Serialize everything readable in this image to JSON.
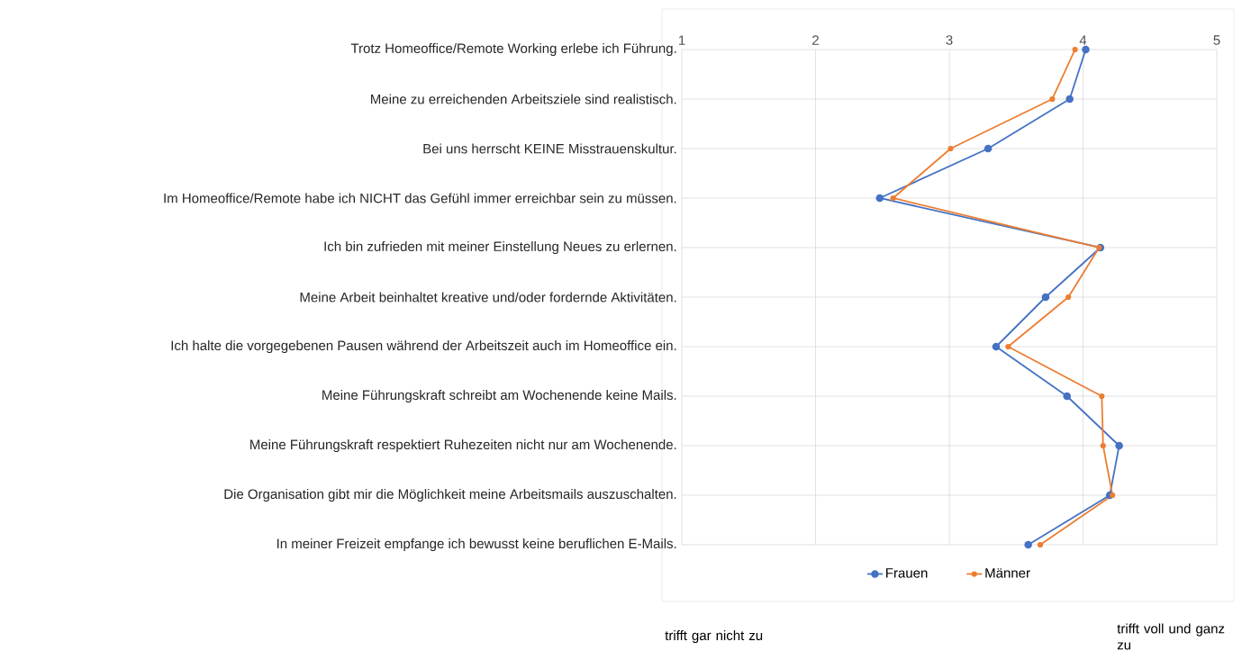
{
  "chart_data": {
    "type": "line",
    "orientation": "horizontal",
    "categories": [
      "Trotz Homeoffice/Remote Working erlebe ich Führung.",
      "Meine zu erreichenden Arbeitsziele sind realistisch.",
      "Bei uns herrscht KEINE Misstrauenskultur.",
      "Im Homeoffice/Remote habe ich NICHT das Gefühl immer erreichbar sein zu müssen.",
      "Ich bin zufrieden mit meiner Einstellung Neues zu erlernen.",
      "Meine Arbeit beinhaltet kreative und/oder fordernde Aktivitäten.",
      "Ich halte die vorgegebenen Pausen während der Arbeitszeit auch im Homeoffice ein.",
      "Meine Führungskraft schreibt am Wochenende keine Mails.",
      "Meine Führungskraft respektiert Ruhezeiten nicht nur am Wochenende.",
      "Die Organisation gibt mir die Möglichkeit meine Arbeitsmails auszuschalten.",
      "In meiner Freizeit empfange ich bewusst keine beruflichen E-Mails."
    ],
    "series": [
      {
        "name": "Frauen",
        "color": "#4472c4",
        "values": [
          4.02,
          3.9,
          3.29,
          2.48,
          4.13,
          3.72,
          3.35,
          3.88,
          4.27,
          4.2,
          3.59
        ]
      },
      {
        "name": "Männer",
        "color": "#ed7d31",
        "values": [
          3.94,
          3.77,
          3.01,
          2.58,
          4.12,
          3.89,
          3.44,
          4.14,
          4.15,
          4.22,
          3.68
        ]
      }
    ],
    "xlim": [
      1,
      5
    ],
    "xticks": [
      1,
      2,
      3,
      4,
      5
    ],
    "grid": true,
    "legend": "bottom",
    "marker": "circle",
    "line_style": "solid",
    "annotations": [
      "trifft gar nicht zu",
      "trifft voll und ganz zu"
    ]
  }
}
